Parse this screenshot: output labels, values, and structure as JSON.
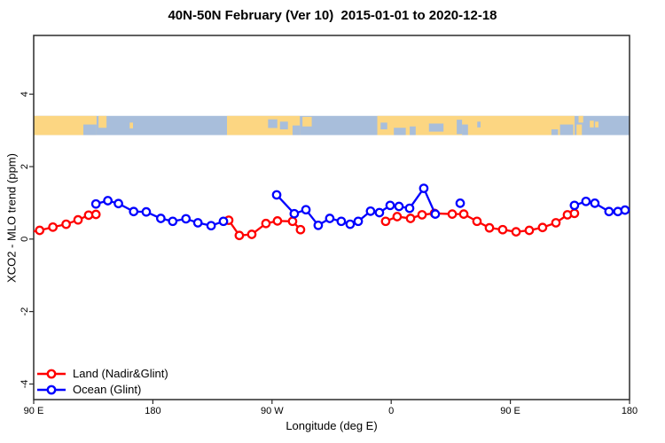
{
  "title": "40N-50N February (Ver 10)  2015-01-01 to 2020-12-18",
  "legend": {
    "items": [
      {
        "label": "Land (Nadir&Glint)",
        "color": "#ff0000"
      },
      {
        "label": "Ocean (Glint)",
        "color": "#0000ff"
      }
    ]
  },
  "chart_data": {
    "type": "line",
    "title": "40N-50N February (Ver 10)  2015-01-01 to 2020-12-18",
    "xlabel": "Longitude (deg E)",
    "ylabel": "XCO2 - MLO trend (ppm)",
    "xlim": [
      90,
      540
    ],
    "ylim": [
      -4.43,
      5.62
    ],
    "grid": false,
    "x_ticks": [
      {
        "pos": 90,
        "label": "90 E"
      },
      {
        "pos": 180,
        "label": "180"
      },
      {
        "pos": 270,
        "label": "90 W"
      },
      {
        "pos": 360,
        "label": "0"
      },
      {
        "pos": 450,
        "label": "90 E"
      },
      {
        "pos": 540,
        "label": "180"
      }
    ],
    "y_ticks": [
      {
        "pos": -4,
        "label": "-4"
      },
      {
        "pos": -2,
        "label": "-2"
      },
      {
        "pos": 0,
        "label": "0"
      },
      {
        "pos": 2,
        "label": "2"
      },
      {
        "pos": 4,
        "label": "4"
      }
    ],
    "map_strip": {
      "note": "world land/ocean strip for latitude band 40N-50N, longitude axis wraps 90E..540",
      "y_range": [
        2.87,
        3.4
      ],
      "ocean_color": "#a8bedb",
      "land_color": "#fcd682",
      "land_blocks": [
        {
          "x": 90,
          "w": 47.5
        },
        {
          "x": 236,
          "w": 55
        },
        {
          "x": 349.5,
          "w": 149
        }
      ],
      "land_patches": [
        {
          "x": 139,
          "w": 6,
          "top": 0,
          "h": 0.62
        },
        {
          "x": 162.5,
          "w": 2.5,
          "top": 0.35,
          "h": 0.3
        },
        {
          "x": 293,
          "w": 7,
          "top": 0.05,
          "h": 0.5
        },
        {
          "x": 500,
          "w": 4,
          "top": 0.45,
          "h": 0.55
        },
        {
          "x": 501.5,
          "w": 3.5,
          "top": 0,
          "h": 0.35
        },
        {
          "x": 510,
          "w": 3,
          "top": 0.25,
          "h": 0.35
        },
        {
          "x": 514,
          "w": 2.5,
          "top": 0.3,
          "h": 0.3
        }
      ],
      "ocean_patches": [
        {
          "x": 127.5,
          "w": 10,
          "top": 0.45,
          "h": 0.55
        },
        {
          "x": 267,
          "w": 7,
          "top": 0.18,
          "h": 0.45
        },
        {
          "x": 276,
          "w": 6,
          "top": 0.3,
          "h": 0.4
        },
        {
          "x": 285.5,
          "w": 5.5,
          "top": 0.5,
          "h": 0.5
        },
        {
          "x": 352,
          "w": 5,
          "top": 0.35,
          "h": 0.35
        },
        {
          "x": 362,
          "w": 9,
          "top": 0.62,
          "h": 0.38
        },
        {
          "x": 374,
          "w": 4.5,
          "top": 0.55,
          "h": 0.45
        },
        {
          "x": 388.5,
          "w": 11,
          "top": 0.4,
          "h": 0.42
        },
        {
          "x": 409.5,
          "w": 4,
          "top": 0.2,
          "h": 0.75
        },
        {
          "x": 413.5,
          "w": 4.5,
          "top": 0.45,
          "h": 0.55
        },
        {
          "x": 425,
          "w": 2.5,
          "top": 0.3,
          "h": 0.3
        },
        {
          "x": 481,
          "w": 5,
          "top": 0.7,
          "h": 0.3
        },
        {
          "x": 487.5,
          "w": 10,
          "top": 0.45,
          "h": 0.55
        }
      ]
    },
    "series": [
      {
        "name": "Land (Nadir&Glint)",
        "color": "#ff0000",
        "segments": [
          {
            "pre": {
              "x": 90,
              "y": 0.21
            },
            "x": [
              94.5,
              104.5,
              114.5,
              123.5,
              131.5,
              137
            ],
            "y": [
              0.24,
              0.33,
              0.41,
              0.53,
              0.66,
              0.68
            ]
          },
          {
            "x": [
              237.3,
              245.3,
              254.7,
              265.4,
              274.1,
              285.5,
              291.5
            ],
            "y": [
              0.52,
              0.1,
              0.13,
              0.43,
              0.5,
              0.49,
              0.26
            ]
          },
          {
            "x": [
              355.8,
              364.5,
              374.6,
              383.3,
              392.7,
              406.1,
              414.8,
              424.8,
              434.2,
              444.2,
              454.3,
              464.3,
              474.3,
              484.4,
              493.1,
              498.4
            ],
            "y": [
              0.49,
              0.62,
              0.57,
              0.67,
              0.71,
              0.69,
              0.69,
              0.49,
              0.31,
              0.26,
              0.2,
              0.24,
              0.32,
              0.45,
              0.67,
              0.71
            ]
          }
        ]
      },
      {
        "name": "Ocean (Glint)",
        "color": "#0000ff",
        "segments": [
          {
            "x": [
              137,
              146,
              154,
              165.5,
              175,
              186,
              195,
              205,
              214,
              224,
              233.3
            ],
            "y": [
              0.97,
              1.06,
              0.98,
              0.76,
              0.75,
              0.57,
              0.49,
              0.56,
              0.45,
              0.37,
              0.49
            ]
          },
          {
            "x": [
              273.5,
              286.8,
              295.6,
              304.9,
              313.6,
              322.3,
              329,
              335.1,
              344.4,
              351.1,
              359.2,
              365.9,
              373.9,
              384.6,
              393.3
            ],
            "y": [
              1.22,
              0.7,
              0.81,
              0.38,
              0.57,
              0.49,
              0.41,
              0.49,
              0.77,
              0.73,
              0.93,
              0.9,
              0.85,
              1.4,
              0.69
            ]
          },
          {
            "x": [
              412.1
            ],
            "y": [
              0.99
            ]
          },
          {
            "post": {
              "x": 540,
              "y": 0.82
            },
            "x": [
              498.4,
              507.1,
              513.8,
              524.5,
              531.2,
              536.6
            ],
            "y": [
              0.93,
              1.04,
              0.99,
              0.76,
              0.76,
              0.8
            ]
          }
        ]
      }
    ]
  }
}
